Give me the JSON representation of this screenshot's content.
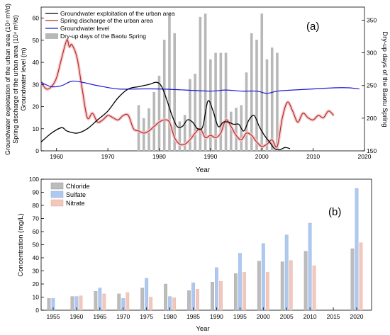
{
  "colors": {
    "exploitation": "#000000",
    "spring": "#b5301e",
    "spring_band": "#f4c6cf",
    "groundwater": "#1a1ad6",
    "dryup": "#b8b8b8",
    "chloride": "#bcbcbc",
    "sulfate": "#aec8f0",
    "nitrate": "#f2c8bc"
  },
  "chart_data": [
    {
      "type": "line",
      "panel_label": "(a)",
      "xlabel": "Year",
      "ylabel_left": "Groundwater exploitation of the urban area (10⁴ m³/d)\nSpring discharge of the urban area (10⁴ m³/d)\nGroundwater level (m)",
      "ylabel_right": "Dry-up days of the Baotu Spring",
      "xlim": [
        1957,
        2020
      ],
      "ylim_left": [
        0,
        65
      ],
      "ylim_right": [
        150,
        370
      ],
      "xticks": [
        1960,
        1970,
        1980,
        1990,
        2000,
        2010,
        2020
      ],
      "yticks_left": [
        0,
        10,
        20,
        30,
        40,
        50,
        60
      ],
      "yticks_right": [
        150,
        200,
        250,
        300,
        350
      ],
      "legend": {
        "position": "top-left",
        "entries": [
          "Groundwater exploitation of the urban area",
          "Spring discharge of the urban area",
          "Groundwater level",
          "Dry-up days of the Baotu Spring"
        ]
      },
      "series": [
        {
          "name": "Groundwater exploitation of the urban area",
          "axis": "left",
          "x": [
            1957,
            1959,
            1961,
            1962,
            1964,
            1966,
            1968,
            1970,
            1972,
            1974,
            1976,
            1978,
            1979.5,
            1980.5,
            1981.5,
            1982.5,
            1983.5,
            1984.5,
            1985.5,
            1986.5,
            1987.5,
            1988.5,
            1989.5,
            1990.5,
            1991.5,
            1992.5,
            1993.5,
            1994.5,
            1995.5,
            1996.5,
            1997.5,
            1998.5,
            1999.5,
            2000.5,
            2001.5,
            2002.5,
            2003.5,
            2004.5,
            2005.5
          ],
          "y": [
            4,
            8,
            10.5,
            9,
            8,
            10,
            14,
            18,
            24,
            28,
            29,
            30,
            31,
            29,
            23,
            16,
            11,
            11,
            14,
            13,
            10,
            11,
            22.5,
            18,
            11,
            13,
            13,
            12,
            12,
            9,
            14,
            16,
            11,
            7,
            4,
            1,
            0.5,
            1.5,
            1
          ]
        },
        {
          "name": "Spring discharge of the urban area",
          "axis": "left",
          "x": [
            1957,
            1958,
            1959,
            1960,
            1961,
            1962,
            1962.5,
            1963,
            1964,
            1965,
            1966,
            1967,
            1968,
            1969,
            1970,
            1971,
            1972,
            1973,
            1974,
            1975,
            1976,
            1977,
            1978,
            1979,
            1980,
            1981,
            1982,
            1983,
            1984,
            1985,
            1986,
            1987,
            1988,
            1989,
            1990,
            1991,
            1992,
            1993,
            1994,
            1995,
            1996,
            1997,
            1998,
            1999,
            2000,
            2001,
            2002,
            2003,
            2004,
            2005,
            2006,
            2007,
            2008,
            2009,
            2010,
            2011,
            2012,
            2013,
            2014
          ],
          "y": [
            31,
            28,
            29,
            33,
            42,
            50,
            47,
            48,
            42,
            28,
            15,
            17,
            13,
            14,
            16,
            15,
            14,
            16,
            16,
            10,
            9,
            8,
            9,
            11,
            13,
            14,
            13,
            6,
            3,
            3,
            5,
            8,
            10,
            6,
            7,
            6,
            8,
            14,
            11,
            7,
            5,
            8,
            7,
            4,
            2,
            3,
            5,
            2,
            15,
            22,
            18,
            13,
            17,
            15,
            14,
            16,
            15,
            18,
            16
          ]
        },
        {
          "name": "Groundwater level",
          "axis": "left",
          "x": [
            1957,
            1959,
            1961,
            1963,
            1965,
            1968,
            1972,
            1976,
            1980,
            1985,
            1990,
            1993,
            1996,
            1999,
            2001,
            2003,
            2006,
            2010,
            2014,
            2017,
            2019
          ],
          "y": [
            31,
            29,
            29.5,
            31.5,
            31,
            29.5,
            28,
            28,
            28,
            27.5,
            27,
            27.5,
            27,
            27,
            26,
            27,
            27.5,
            28,
            28.5,
            28.5,
            28
          ]
        },
        {
          "name": "Dry-up days of the Baotu Spring",
          "axis": "right",
          "type": "bar",
          "x": [
            1976,
            1977,
            1978,
            1979,
            1980,
            1981,
            1982,
            1983,
            1984,
            1985,
            1986,
            1987,
            1988,
            1989,
            1990,
            1991,
            1992,
            1993,
            1994,
            1995,
            1996,
            1997,
            1998,
            1999,
            2000,
            2001,
            2002,
            2003
          ],
          "y": [
            220,
            200,
            215,
            240,
            265,
            320,
            360,
            330,
            195,
            205,
            260,
            268,
            355,
            360,
            290,
            300,
            300,
            300,
            210,
            216,
            220,
            270,
            330,
            320,
            360,
            290,
            308,
            300
          ]
        }
      ]
    },
    {
      "type": "bar",
      "panel_label": "(b)",
      "xlabel": "Year",
      "ylabel": "Concentration (mg/L)",
      "ylim": [
        0,
        100
      ],
      "yticks": [
        0,
        10,
        20,
        30,
        40,
        50,
        60,
        70,
        80,
        90,
        100
      ],
      "categories": [
        "1955",
        "1960",
        "1965",
        "1970",
        "1975",
        "1980",
        "1985",
        "1990",
        "1995",
        "2000",
        "2005",
        "2010",
        "2015",
        "2020"
      ],
      "legend": {
        "position": "top-left",
        "entries": [
          "Chloride",
          "Sulfate",
          "Nitrate"
        ]
      },
      "series": [
        {
          "name": "Chloride",
          "values": [
            9,
            10.5,
            14.5,
            12.5,
            17,
            20,
            15,
            21.5,
            28,
            37.5,
            37,
            45,
            null,
            47
          ]
        },
        {
          "name": "Sulfate",
          "values": [
            9,
            10.5,
            17,
            9,
            24.5,
            10.5,
            21,
            32.5,
            43.5,
            51,
            57.5,
            66.5,
            null,
            93
          ]
        },
        {
          "name": "Nitrate",
          "values": [
            null,
            11,
            12.5,
            13.5,
            10,
            9.5,
            16,
            22,
            29,
            29,
            38,
            34,
            null,
            51.5
          ]
        }
      ]
    }
  ]
}
